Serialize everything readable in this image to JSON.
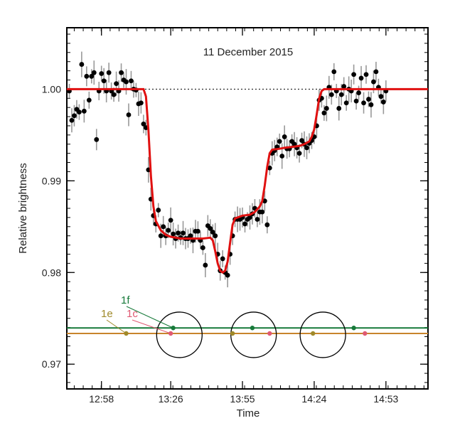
{
  "chart_data": {
    "type": "scatter",
    "title": "11 December 2015",
    "xlabel": "Time",
    "ylabel": "Relative brightness",
    "x_range_min": [
      764,
      910
    ],
    "ylim": [
      0.9673,
      1.0067
    ],
    "x_ticks": [
      {
        "label": "12:58",
        "min": 778
      },
      {
        "label": "13:26",
        "min": 806
      },
      {
        "label": "13:55",
        "min": 835
      },
      {
        "label": "14:24",
        "min": 864
      },
      {
        "label": "14:53",
        "min": 893
      }
    ],
    "y_ticks": [
      {
        "label": "1.00",
        "value": 1.0
      },
      {
        "label": "0.99",
        "value": 0.99
      },
      {
        "label": "0.98",
        "value": 0.98
      },
      {
        "label": "0.97",
        "value": 0.97
      }
    ],
    "baseline": 1.0,
    "observations": [
      [
        765,
        0.9998
      ],
      [
        766,
        0.9966
      ],
      [
        767,
        0.9971
      ],
      [
        768,
        0.9978
      ],
      [
        769,
        0.9975
      ],
      [
        770,
        1.0027
      ],
      [
        771,
        0.9976
      ],
      [
        772,
        1.0014
      ],
      [
        773,
        0.9988
      ],
      [
        774,
        1.0014
      ],
      [
        775,
        1.0018
      ],
      [
        776,
        0.9945
      ],
      [
        777,
        0.9998
      ],
      [
        778,
        1.0017
      ],
      [
        779,
        1.0009
      ],
      [
        780,
        0.9998
      ],
      [
        781,
        1.0018
      ],
      [
        782,
        0.9998
      ],
      [
        783,
        0.9994
      ],
      [
        784,
        1.0006
      ],
      [
        785,
        0.9998
      ],
      [
        786,
        1.0018
      ],
      [
        787,
        1.001
      ],
      [
        788,
        1.0008
      ],
      [
        789,
        0.9972
      ],
      [
        790,
        1.0009
      ],
      [
        791,
        1.0
      ],
      [
        792,
        0.9999
      ],
      [
        793,
        0.9984
      ],
      [
        794,
        0.9985
      ],
      [
        795,
        0.9962
      ],
      [
        796,
        0.9958
      ],
      [
        797,
        0.9912
      ],
      [
        798,
        0.988
      ],
      [
        799,
        0.9862
      ],
      [
        800,
        0.9853
      ],
      [
        801,
        0.9868
      ],
      [
        802,
        0.984
      ],
      [
        803,
        0.985
      ],
      [
        804,
        0.984
      ],
      [
        805,
        0.9846
      ],
      [
        806,
        0.9857
      ],
      [
        807,
        0.9842
      ],
      [
        808,
        0.9837
      ],
      [
        809,
        0.9843
      ],
      [
        810,
        0.9838
      ],
      [
        811,
        0.9843
      ],
      [
        812,
        0.9837
      ],
      [
        813,
        0.9837
      ],
      [
        814,
        0.984
      ],
      [
        815,
        0.9835
      ],
      [
        816,
        0.9845
      ],
      [
        817,
        0.9845
      ],
      [
        818,
        0.9835
      ],
      [
        819,
        0.9827
      ],
      [
        820,
        0.9808
      ],
      [
        821,
        0.9851
      ],
      [
        822,
        0.9848
      ],
      [
        823,
        0.9844
      ],
      [
        824,
        0.984
      ],
      [
        825,
        0.982
      ],
      [
        826,
        0.9802
      ],
      [
        827,
        0.9815
      ],
      [
        828,
        0.98
      ],
      [
        829,
        0.9797
      ],
      [
        830,
        0.982
      ],
      [
        831,
        0.984
      ],
      [
        832,
        0.9858
      ],
      [
        833,
        0.9858
      ],
      [
        834,
        0.9858
      ],
      [
        835,
        0.986
      ],
      [
        836,
        0.9853
      ],
      [
        837,
        0.9858
      ],
      [
        838,
        0.986
      ],
      [
        839,
        0.9864
      ],
      [
        840,
        0.987
      ],
      [
        841,
        0.9858
      ],
      [
        842,
        0.9866
      ],
      [
        843,
        0.9866
      ],
      [
        844,
        0.9878
      ],
      [
        845,
        0.9852
      ],
      [
        846,
        0.9914
      ],
      [
        847,
        0.993
      ],
      [
        848,
        0.9933
      ],
      [
        849,
        0.9937
      ],
      [
        850,
        0.9943
      ],
      [
        851,
        0.9927
      ],
      [
        852,
        0.9948
      ],
      [
        853,
        0.9935
      ],
      [
        854,
        0.9935
      ],
      [
        855,
        0.9943
      ],
      [
        856,
        0.994
      ],
      [
        857,
        0.9936
      ],
      [
        858,
        0.993
      ],
      [
        859,
        0.9944
      ],
      [
        860,
        0.994
      ],
      [
        861,
        0.9936
      ],
      [
        862,
        0.9941
      ],
      [
        863,
        0.9944
      ],
      [
        864,
        0.9948
      ],
      [
        865,
        0.996
      ],
      [
        866,
        0.9988
      ],
      [
        867,
        0.999
      ],
      [
        868,
        0.9974
      ],
      [
        869,
        0.9979
      ],
      [
        870,
        1.0002
      ],
      [
        871,
        0.9994
      ],
      [
        872,
        1.0019
      ],
      [
        873,
        0.9998
      ],
      [
        874,
        0.9979
      ],
      [
        875,
        0.9994
      ],
      [
        876,
        1.0003
      ],
      [
        877,
        0.9985
      ],
      [
        878,
        1.0
      ],
      [
        879,
        0.9998
      ],
      [
        880,
        1.0016
      ],
      [
        881,
        0.9987
      ],
      [
        882,
        0.9996
      ],
      [
        883,
        1.0012
      ],
      [
        884,
        0.9985
      ],
      [
        885,
        1.0016
      ],
      [
        886,
        0.9989
      ],
      [
        887,
        0.9983
      ],
      [
        888,
        1.0008
      ],
      [
        889,
        1.0019
      ],
      [
        890,
        1.0002
      ],
      [
        891,
        0.9992
      ],
      [
        892,
        0.9986
      ],
      [
        893,
        0.9998
      ]
    ],
    "model_curve": [
      [
        764,
        1.0
      ],
      [
        795,
        1.0
      ],
      [
        796,
        0.9992
      ],
      [
        797,
        0.9955
      ],
      [
        798,
        0.9905
      ],
      [
        799,
        0.9872
      ],
      [
        800,
        0.9856
      ],
      [
        802,
        0.9846
      ],
      [
        804,
        0.9841
      ],
      [
        806,
        0.9839
      ],
      [
        810,
        0.9837
      ],
      [
        815,
        0.9837
      ],
      [
        816,
        0.9837
      ],
      [
        819,
        0.9837
      ],
      [
        822,
        0.9838
      ],
      [
        823,
        0.9835
      ],
      [
        824,
        0.9823
      ],
      [
        825,
        0.981
      ],
      [
        826,
        0.9802
      ],
      [
        827,
        0.98
      ],
      [
        828,
        0.9802
      ],
      [
        829,
        0.9812
      ],
      [
        830,
        0.9832
      ],
      [
        831,
        0.9852
      ],
      [
        832,
        0.9859
      ],
      [
        835,
        0.9862
      ],
      [
        838,
        0.9863
      ],
      [
        840,
        0.9866
      ],
      [
        842,
        0.9872
      ],
      [
        843,
        0.9878
      ],
      [
        844,
        0.9895
      ],
      [
        845,
        0.9915
      ],
      [
        846,
        0.993
      ],
      [
        847,
        0.9934
      ],
      [
        850,
        0.9935
      ],
      [
        852,
        0.9936
      ],
      [
        855,
        0.9937
      ],
      [
        858,
        0.9938
      ],
      [
        860,
        0.994
      ],
      [
        862,
        0.9943
      ],
      [
        863,
        0.9948
      ],
      [
        864,
        0.9956
      ],
      [
        865,
        0.9972
      ],
      [
        866,
        0.999
      ],
      [
        867,
        0.9998
      ],
      [
        868,
        1.0
      ],
      [
        910,
        1.0
      ]
    ],
    "planet_tracks": [
      {
        "name": "1c",
        "color": "#e05a73",
        "level": 0.97335,
        "points": [
          806,
          846,
          884.5
        ]
      },
      {
        "name": "1e",
        "color": "#a08a2a",
        "level": 0.97335,
        "points": [
          788,
          831,
          863.5
        ]
      },
      {
        "name": "1f",
        "color": "#177a3a",
        "level": 0.97395,
        "points": [
          807,
          839,
          880
        ]
      }
    ],
    "star_circles_center_min": [
      809.5,
      839.5,
      867.5
    ],
    "star_circles_level": 0.9732,
    "colors": {
      "model": "#e01010",
      "observations": "#000000",
      "errorbar": "#999999",
      "orange_track": "#c8842c",
      "green_track": "#177a3a"
    }
  }
}
